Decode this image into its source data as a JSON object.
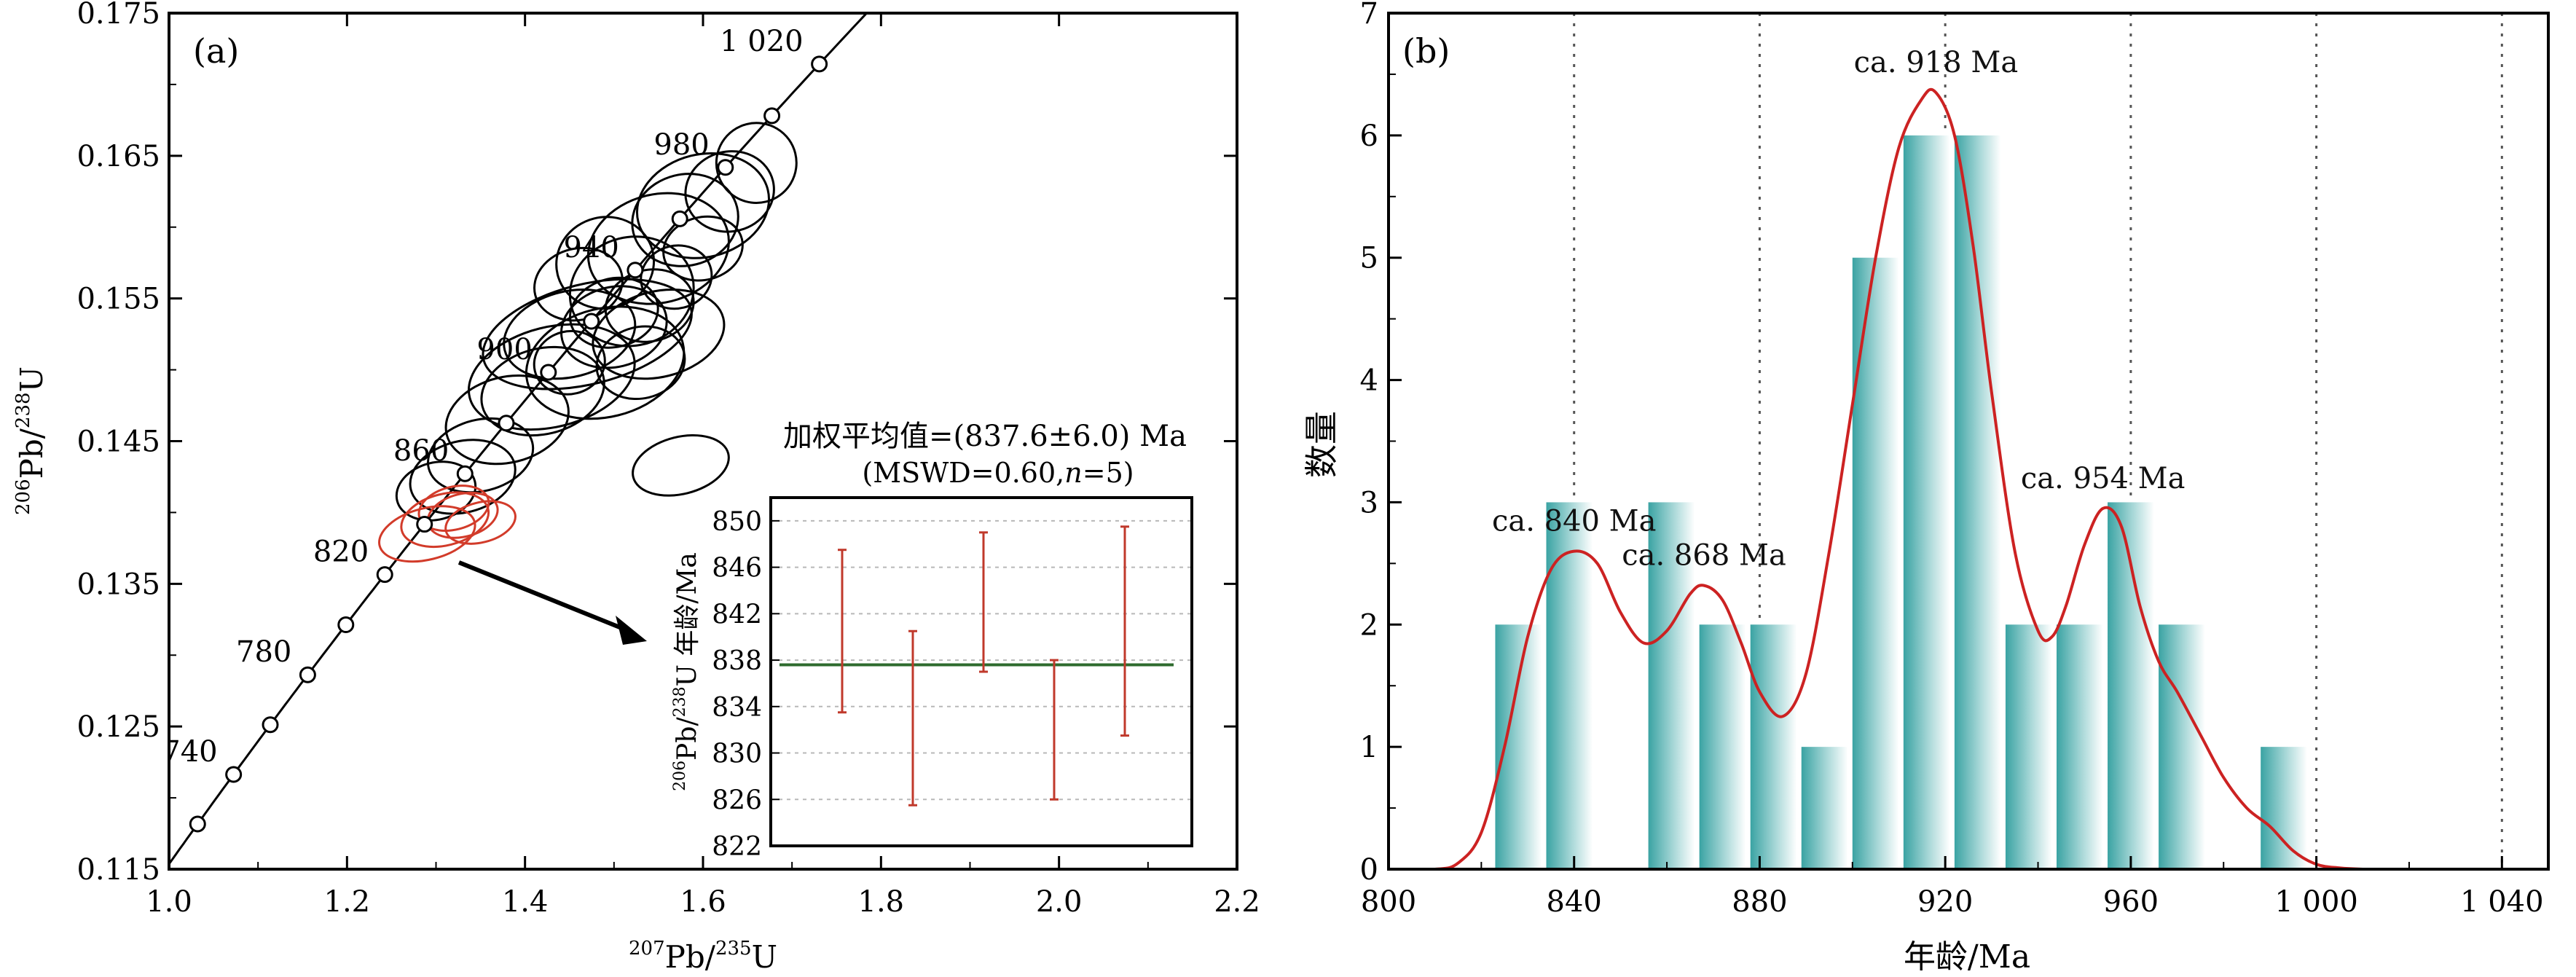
{
  "chart_data": [
    {
      "panel_label": "(a)",
      "type": "scatter",
      "subtype": "concordia",
      "xlabel_num_sup": "207",
      "xlabel_num": "Pb/",
      "xlabel_den_sup": "235",
      "xlabel_den": "U",
      "ylabel_num_sup": "206",
      "ylabel_num": "Pb/",
      "ylabel_den_sup": "238",
      "ylabel_den": "U",
      "xlim": [
        1.0,
        2.2
      ],
      "ylim": [
        0.115,
        0.175
      ],
      "xticks": [
        1.0,
        1.2,
        1.4,
        1.6,
        1.8,
        2.0,
        2.2
      ],
      "xtick_labels": [
        "1.0",
        "1.2",
        "1.4",
        "1.6",
        "1.8",
        "2.0",
        "2.2"
      ],
      "yticks": [
        0.115,
        0.125,
        0.135,
        0.145,
        0.155,
        0.165,
        0.175
      ],
      "ytick_labels": [
        "0.115",
        "0.125",
        "0.135",
        "0.145",
        "0.155",
        "0.165",
        "0.175"
      ],
      "grid": false,
      "concordia_ages": [
        720,
        740,
        760,
        780,
        800,
        820,
        840,
        860,
        880,
        900,
        920,
        940,
        960,
        980,
        1000,
        1020
      ],
      "concordia_age_labels": [
        {
          "age": 740,
          "text": "740"
        },
        {
          "age": 780,
          "text": "780"
        },
        {
          "age": 820,
          "text": "820"
        },
        {
          "age": 860,
          "text": "860"
        },
        {
          "age": 900,
          "text": "900"
        },
        {
          "age": 940,
          "text": "940"
        },
        {
          "age": 980,
          "text": "980"
        },
        {
          "age": 1020,
          "text": "1 020"
        }
      ],
      "black_ellipses": [
        {
          "x": 1.47,
          "y": 0.1525,
          "rx": 0.12,
          "ry": 0.0035
        },
        {
          "x": 1.43,
          "y": 0.1495,
          "rx": 0.095,
          "ry": 0.0035
        },
        {
          "x": 1.52,
          "y": 0.1555,
          "rx": 0.07,
          "ry": 0.0038
        },
        {
          "x": 1.49,
          "y": 0.1505,
          "rx": 0.09,
          "ry": 0.0038
        },
        {
          "x": 1.55,
          "y": 0.1585,
          "rx": 0.08,
          "ry": 0.0038
        },
        {
          "x": 1.6,
          "y": 0.1615,
          "rx": 0.075,
          "ry": 0.0036
        },
        {
          "x": 1.58,
          "y": 0.1605,
          "rx": 0.06,
          "ry": 0.0032
        },
        {
          "x": 1.63,
          "y": 0.1625,
          "rx": 0.05,
          "ry": 0.0028
        },
        {
          "x": 1.5,
          "y": 0.153,
          "rx": 0.06,
          "ry": 0.0028
        },
        {
          "x": 1.5,
          "y": 0.154,
          "rx": 0.05,
          "ry": 0.0024
        },
        {
          "x": 1.45,
          "y": 0.1525,
          "rx": 0.075,
          "ry": 0.003
        },
        {
          "x": 1.55,
          "y": 0.1525,
          "rx": 0.075,
          "ry": 0.003
        },
        {
          "x": 1.49,
          "y": 0.1575,
          "rx": 0.055,
          "ry": 0.0032
        },
        {
          "x": 1.42,
          "y": 0.1485,
          "rx": 0.07,
          "ry": 0.003
        },
        {
          "x": 1.38,
          "y": 0.1465,
          "rx": 0.07,
          "ry": 0.003
        },
        {
          "x": 1.35,
          "y": 0.144,
          "rx": 0.06,
          "ry": 0.0025
        },
        {
          "x": 1.33,
          "y": 0.1425,
          "rx": 0.06,
          "ry": 0.0025
        },
        {
          "x": 1.3,
          "y": 0.1415,
          "rx": 0.045,
          "ry": 0.002
        },
        {
          "x": 1.54,
          "y": 0.1545,
          "rx": 0.05,
          "ry": 0.0025
        },
        {
          "x": 1.46,
          "y": 0.156,
          "rx": 0.05,
          "ry": 0.0025
        },
        {
          "x": 1.57,
          "y": 0.1565,
          "rx": 0.04,
          "ry": 0.0022
        },
        {
          "x": 1.66,
          "y": 0.1645,
          "rx": 0.045,
          "ry": 0.0028
        },
        {
          "x": 1.6,
          "y": 0.1585,
          "rx": 0.045,
          "ry": 0.0022
        },
        {
          "x": 1.45,
          "y": 0.1505,
          "rx": 0.04,
          "ry": 0.0022
        },
        {
          "x": 1.53,
          "y": 0.1505,
          "rx": 0.05,
          "ry": 0.0025
        },
        {
          "x": 1.575,
          "y": 0.1433,
          "rx": 0.055,
          "ry": 0.002
        }
      ],
      "red_ellipses": [
        {
          "x": 1.29,
          "y": 0.1385,
          "rx": 0.055,
          "ry": 0.0018
        },
        {
          "x": 1.31,
          "y": 0.1395,
          "rx": 0.05,
          "ry": 0.0018
        },
        {
          "x": 1.33,
          "y": 0.1398,
          "rx": 0.04,
          "ry": 0.0015
        },
        {
          "x": 1.32,
          "y": 0.1403,
          "rx": 0.04,
          "ry": 0.0015
        },
        {
          "x": 1.35,
          "y": 0.1393,
          "rx": 0.04,
          "ry": 0.0014
        }
      ],
      "inset": {
        "title_line1": "加权平均值=(837.6±6.0) Ma",
        "title_line2_prefix": "(MSWD=0.60,",
        "title_line2_n": "n",
        "title_line2_suffix": "=5)",
        "ylabel_sup": "206",
        "ylabel_mid": "Pb/",
        "ylabel_sup2": "238",
        "ylabel_end": "U 年龄/Ma",
        "ylim": [
          822,
          852
        ],
        "yticks": [
          822,
          826,
          830,
          834,
          838,
          842,
          846,
          850
        ],
        "ytick_labels": [
          "822",
          "826",
          "830",
          "834",
          "838",
          "842",
          "846",
          "850"
        ],
        "grid": true,
        "weighted_mean": 837.6,
        "line_color": "#2e6b2e",
        "bar_color": "#c0392b",
        "error_bars": [
          {
            "low": 833.5,
            "high": 847.5
          },
          {
            "low": 825.5,
            "high": 840.5
          },
          {
            "low": 837.0,
            "high": 849.0
          },
          {
            "low": 826.0,
            "high": 838.0
          },
          {
            "low": 831.5,
            "high": 849.5
          }
        ]
      }
    },
    {
      "panel_label": "(b)",
      "type": "bar",
      "subtype": "histogram with probability density curve",
      "xlabel": "年龄/Ma",
      "ylabel": "数量",
      "xlim": [
        800,
        1050
      ],
      "ylim": [
        0,
        7
      ],
      "xticks": [
        800,
        840,
        880,
        920,
        960,
        1000,
        1040
      ],
      "xtick_labels": [
        "800",
        "840",
        "880",
        "920",
        "960",
        "1 000",
        "1 040"
      ],
      "yticks": [
        0,
        1,
        2,
        3,
        4,
        5,
        6,
        7
      ],
      "ytick_labels": [
        "0",
        "1",
        "2",
        "3",
        "4",
        "5",
        "6",
        "7"
      ],
      "vertical_gridlines": [
        840,
        880,
        920,
        960,
        1000,
        1040
      ],
      "bin_width": 10,
      "bins": [
        {
          "start": 823,
          "count": 2
        },
        {
          "start": 834,
          "count": 3
        },
        {
          "start": 856,
          "count": 3
        },
        {
          "start": 867,
          "count": 2
        },
        {
          "start": 878,
          "count": 2
        },
        {
          "start": 889,
          "count": 1
        },
        {
          "start": 900,
          "count": 5
        },
        {
          "start": 911,
          "count": 6
        },
        {
          "start": 922,
          "count": 6
        },
        {
          "start": 933,
          "count": 2
        },
        {
          "start": 944,
          "count": 2
        },
        {
          "start": 955,
          "count": 3
        },
        {
          "start": 966,
          "count": 2
        },
        {
          "start": 988,
          "count": 1
        }
      ],
      "bar_color": "#3aa3a3",
      "curve_color": "#cc2222",
      "curve": {
        "x": [
          800,
          810,
          815,
          820,
          825,
          830,
          835,
          840,
          845,
          850,
          855,
          860,
          865,
          868,
          872,
          876,
          880,
          885,
          890,
          895,
          900,
          905,
          910,
          915,
          918,
          922,
          926,
          930,
          935,
          940,
          943,
          946,
          950,
          954,
          958,
          962,
          966,
          970,
          975,
          980,
          985,
          990,
          995,
          1000,
          1005,
          1010,
          1018
        ],
        "y": [
          0,
          0,
          0.05,
          0.3,
          1.0,
          1.9,
          2.45,
          2.6,
          2.5,
          2.1,
          1.85,
          1.95,
          2.25,
          2.32,
          2.2,
          1.85,
          1.45,
          1.25,
          1.6,
          2.6,
          3.8,
          5.0,
          5.9,
          6.3,
          6.35,
          6.0,
          5.1,
          3.9,
          2.6,
          1.95,
          1.9,
          2.15,
          2.65,
          2.95,
          2.8,
          2.15,
          1.7,
          1.45,
          1.1,
          0.75,
          0.5,
          0.35,
          0.15,
          0.04,
          0.01,
          0,
          0
        ]
      },
      "annotations": [
        {
          "text": "ca. 840 Ma",
          "x": 840,
          "y": 2.6
        },
        {
          "text": "ca. 868 Ma",
          "x": 868,
          "y": 2.32
        },
        {
          "text": "ca. 918 Ma",
          "x": 918,
          "y": 6.35
        },
        {
          "text": "ca. 954 Ma",
          "x": 954,
          "y": 2.95
        }
      ]
    }
  ]
}
